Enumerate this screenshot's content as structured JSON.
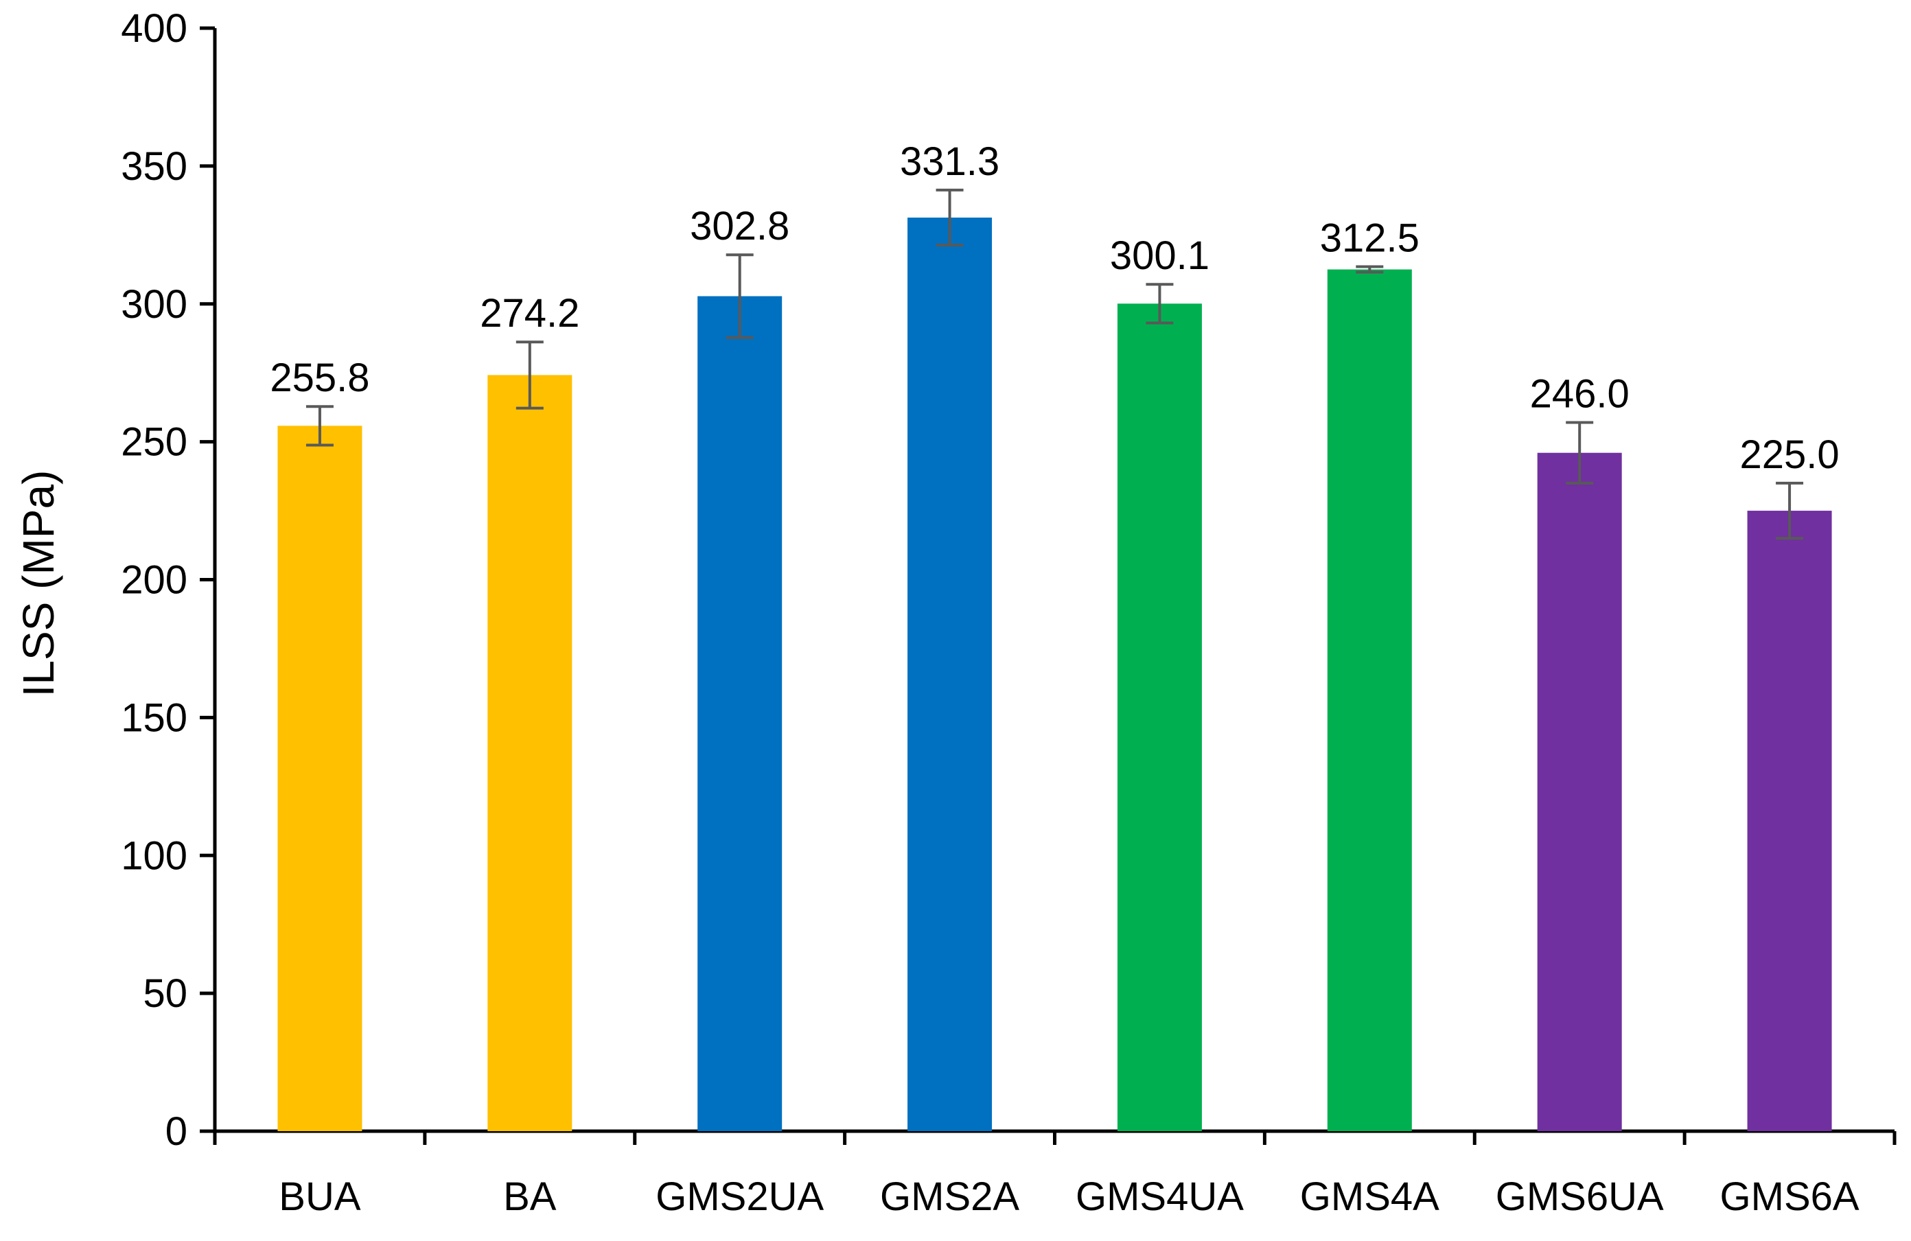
{
  "chart_data": {
    "type": "bar",
    "title": "",
    "xlabel": "",
    "ylabel": "ILSS (MPa)",
    "ylim": [
      0,
      400
    ],
    "yticks": [
      0,
      50,
      100,
      150,
      200,
      250,
      300,
      350,
      400
    ],
    "ytick_labels": [
      "0",
      "50",
      "100",
      "150",
      "200",
      "250",
      "300",
      "350",
      "400"
    ],
    "grid": false,
    "legend": "none",
    "categories": [
      "BUA",
      "BA",
      "GMS2UA",
      "GMS2A",
      "GMS4UA",
      "GMS4A",
      "GMS6UA",
      "GMS6A"
    ],
    "values": [
      255.8,
      274.2,
      302.8,
      331.3,
      300.1,
      312.5,
      246.0,
      225.0
    ],
    "value_labels": [
      "255.8",
      "274.2",
      "302.8",
      "331.3",
      "300.1",
      "312.5",
      "246.0",
      "225.0"
    ],
    "errors": [
      7,
      12,
      15,
      10,
      7,
      1,
      11,
      10
    ],
    "colors": [
      "#FFC000",
      "#FFC000",
      "#0070C0",
      "#0070C0",
      "#00B050",
      "#00B050",
      "#7030A0",
      "#7030A0"
    ],
    "error_bar_color": "#595959",
    "axis_color": "#000000"
  }
}
